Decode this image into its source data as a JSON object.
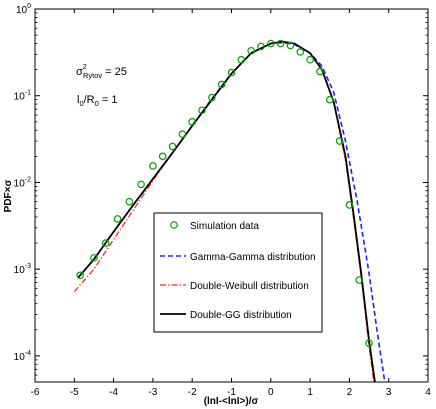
{
  "chart_data": {
    "type": "line",
    "title": "",
    "xlabel": "(lnI-<lnI>)/σ",
    "ylabel": "PDF×σ",
    "xlim": [
      -6,
      4
    ],
    "ylim": [
      5e-05,
      1
    ],
    "yscale": "log",
    "grid": false,
    "legend_position": "center-bottom",
    "xticks": [
      -6,
      -5,
      -4,
      -3,
      -2,
      -1,
      0,
      1,
      2,
      3,
      4
    ],
    "xtick_labels": [
      "-6",
      "-5",
      "-4",
      "-3",
      "-2",
      "-1",
      "0",
      "1",
      "2",
      "3",
      "4"
    ],
    "yticks": [
      0.0001,
      0.001,
      0.01,
      0.1,
      1
    ],
    "ytick_labels": [
      {
        "base": "10",
        "exp": "-4"
      },
      {
        "base": "10",
        "exp": "-3"
      },
      {
        "base": "10",
        "exp": "-2"
      },
      {
        "base": "10",
        "exp": "-1"
      },
      {
        "base": "10",
        "exp": "0"
      }
    ],
    "annotations": [
      {
        "id": "sigma",
        "sym": "σ",
        "sup": "2",
        "sub": "Rytov",
        "text": " = 25"
      },
      {
        "id": "l0r0",
        "l": "l",
        "sub1": "0",
        "mid": "/R",
        "sub2": "0",
        "text": " = 1"
      }
    ],
    "series": [
      {
        "name": "Simulation data",
        "kind": "markers",
        "color": "#00a000",
        "x": [
          -4.85,
          -4.5,
          -4.2,
          -3.9,
          -3.6,
          -3.3,
          -3.0,
          -2.75,
          -2.5,
          -2.25,
          -2.0,
          -1.75,
          -1.5,
          -1.25,
          -1.0,
          -0.75,
          -0.5,
          -0.25,
          0.0,
          0.25,
          0.5,
          0.75,
          1.0,
          1.25,
          1.5,
          1.75,
          2.0,
          2.25,
          2.5
        ],
        "y": [
          0.00085,
          0.00135,
          0.002,
          0.0038,
          0.006,
          0.0095,
          0.0155,
          0.02,
          0.026,
          0.036,
          0.05,
          0.068,
          0.095,
          0.135,
          0.185,
          0.26,
          0.33,
          0.37,
          0.4,
          0.4,
          0.38,
          0.32,
          0.26,
          0.19,
          0.09,
          0.03,
          0.0055,
          0.00075,
          0.00014
        ]
      },
      {
        "name": "Gamma-Gamma distribution",
        "kind": "dashed",
        "color": "#2020ff",
        "x": [
          -4.9,
          -4.5,
          -4.0,
          -3.5,
          -3.0,
          -2.5,
          -2.0,
          -1.5,
          -1.0,
          -0.5,
          0.0,
          0.3,
          0.6,
          1.0,
          1.3,
          1.6,
          1.9,
          2.2,
          2.5,
          2.7,
          2.9
        ],
        "y": [
          0.0008,
          0.0013,
          0.0027,
          0.0055,
          0.011,
          0.022,
          0.045,
          0.092,
          0.18,
          0.31,
          0.4,
          0.41,
          0.39,
          0.31,
          0.22,
          0.11,
          0.03,
          0.006,
          0.0009,
          0.0002,
          5e-05
        ]
      },
      {
        "name": "Double-Weibull distribution",
        "kind": "dashdot",
        "color": "#ff2020",
        "x": [
          -5.0,
          -4.5,
          -4.0,
          -3.5,
          -3.0,
          -2.5,
          -2.0,
          -1.5,
          -1.0,
          -0.5,
          0.0,
          0.3,
          0.6,
          1.0,
          1.3,
          1.6,
          1.9,
          2.1,
          2.3,
          2.5,
          2.62
        ],
        "y": [
          0.00055,
          0.001,
          0.0022,
          0.0048,
          0.0105,
          0.022,
          0.045,
          0.09,
          0.18,
          0.31,
          0.4,
          0.42,
          0.4,
          0.31,
          0.2,
          0.085,
          0.018,
          0.004,
          0.0008,
          0.00013,
          5e-05
        ]
      },
      {
        "name": "Double-GG distribution",
        "kind": "solid",
        "color": "#000000",
        "x": [
          -4.9,
          -4.5,
          -4.0,
          -3.5,
          -3.0,
          -2.5,
          -2.0,
          -1.5,
          -1.0,
          -0.5,
          0.0,
          0.3,
          0.6,
          1.0,
          1.3,
          1.6,
          1.9,
          2.1,
          2.3,
          2.5,
          2.65
        ],
        "y": [
          0.0008,
          0.0013,
          0.0027,
          0.0055,
          0.011,
          0.022,
          0.045,
          0.09,
          0.18,
          0.31,
          0.4,
          0.42,
          0.4,
          0.31,
          0.2,
          0.085,
          0.02,
          0.0045,
          0.0009,
          0.00015,
          5e-05
        ]
      }
    ]
  }
}
